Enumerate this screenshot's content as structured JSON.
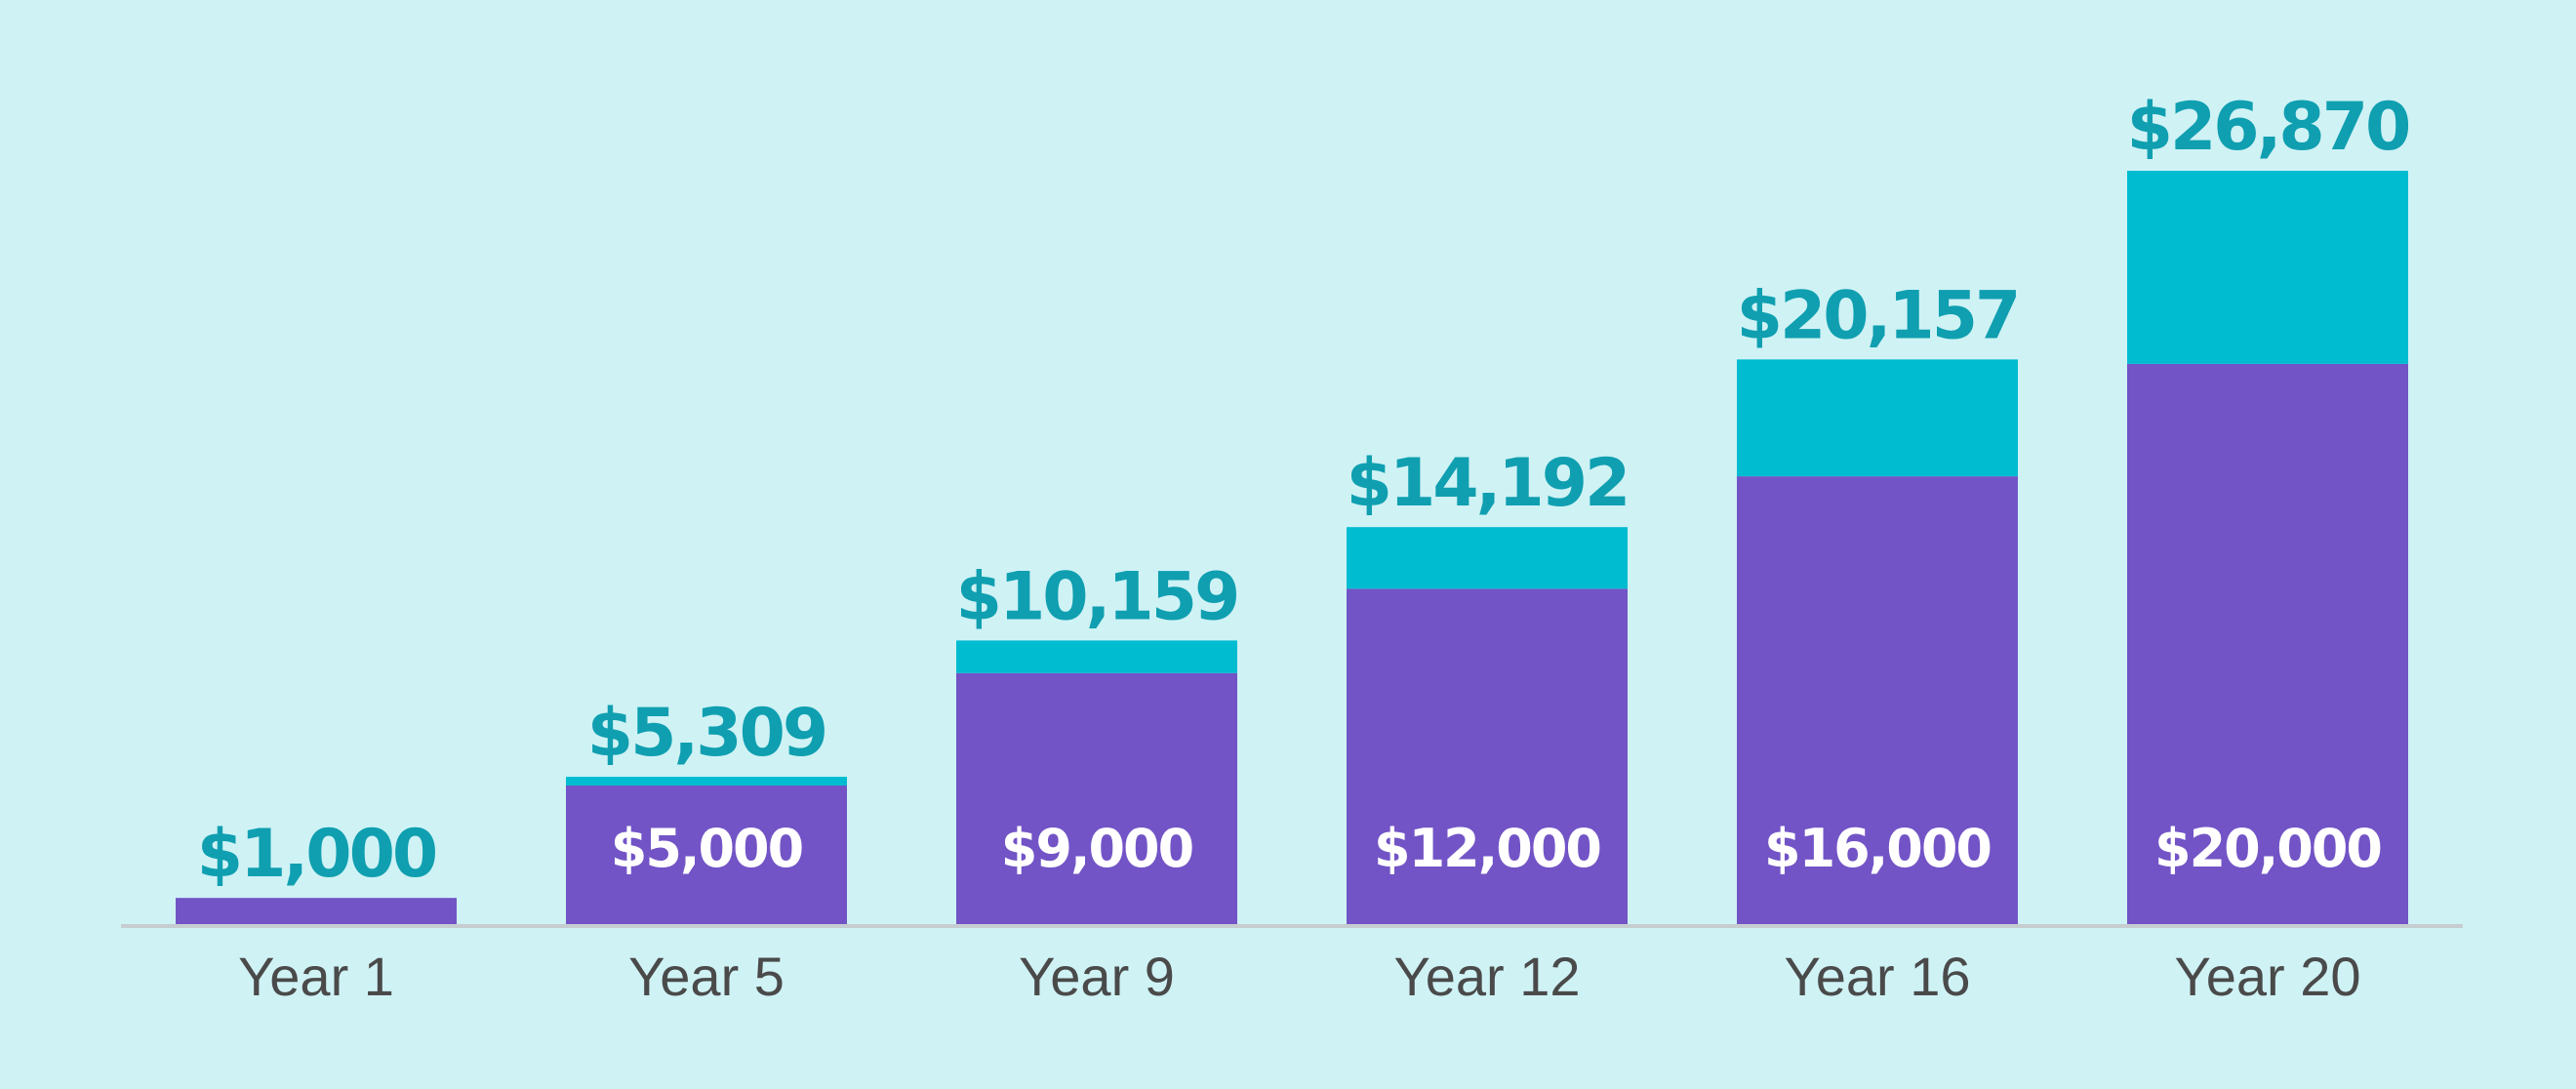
{
  "chart_data": {
    "type": "bar",
    "stacked": true,
    "categories": [
      "Year 1",
      "Year 5",
      "Year 9",
      "Year 12",
      "Year 16",
      "Year 20"
    ],
    "series": [
      {
        "values": [
          1000,
          5000,
          9000,
          12000,
          16000,
          20000
        ],
        "color": "#7254c6"
      },
      {
        "values": [
          0,
          309,
          1159,
          2192,
          4157,
          6870
        ],
        "color": "#00bcd1"
      }
    ],
    "totals": [
      1000,
      5309,
      10159,
      14192,
      20157,
      26870
    ],
    "total_labels": [
      "$1,000",
      "$5,309",
      "$10,159",
      "$14,192",
      "$20,157",
      "$26,870"
    ],
    "inner_labels": [
      "",
      "$5,000",
      "$9,000",
      "$12,000",
      "$16,000",
      "$20,000"
    ],
    "ylim": [
      0,
      26870
    ],
    "grid": false,
    "title": "",
    "xlabel": "",
    "ylabel": ""
  },
  "colors": {
    "background": "#cff2f5",
    "axis": "#c5cdd0",
    "total_label": "#0f9fb0",
    "inner_label": "#ffffff",
    "tick_label": "#4a4a4a"
  }
}
